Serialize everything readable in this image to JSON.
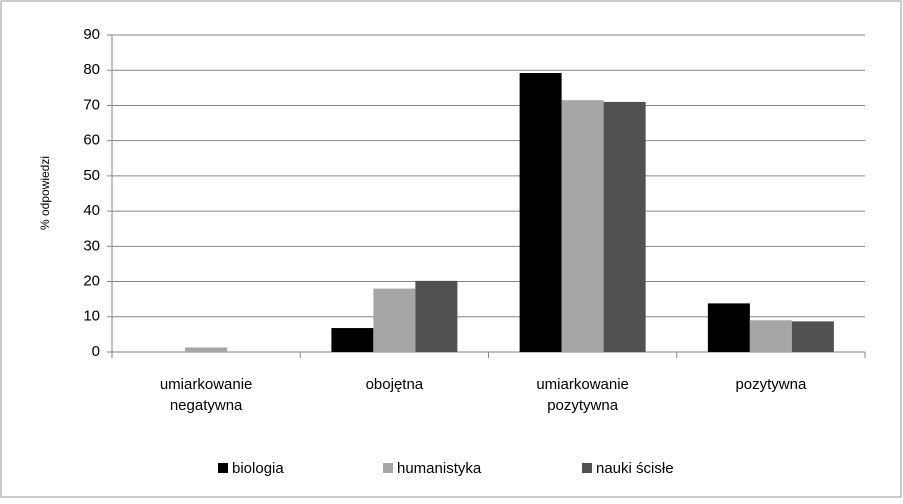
{
  "chart_data": {
    "type": "bar",
    "y_axis_label": "% odpowiedzi",
    "categories": [
      [
        "umiarkowanie",
        "negatywna"
      ],
      [
        "obojętna"
      ],
      [
        "umiarkowanie",
        "pozytywna"
      ],
      [
        "pozytywna"
      ]
    ],
    "series": [
      {
        "name": "biologia",
        "color": "#000000",
        "values": [
          0,
          6.8,
          79.2,
          13.8
        ]
      },
      {
        "name": "humanistyka",
        "color": "#a6a6a6",
        "values": [
          1.3,
          18,
          71.5,
          9
        ]
      },
      {
        "name": "nauki ścisłe",
        "color": "#4f5152",
        "values": [
          0,
          20.2,
          71,
          8.7
        ]
      }
    ],
    "ylim": [
      0,
      90
    ],
    "yticks": [
      0,
      10,
      20,
      30,
      40,
      50,
      60,
      70,
      80,
      90
    ],
    "grid": true,
    "legend": "bottom"
  }
}
